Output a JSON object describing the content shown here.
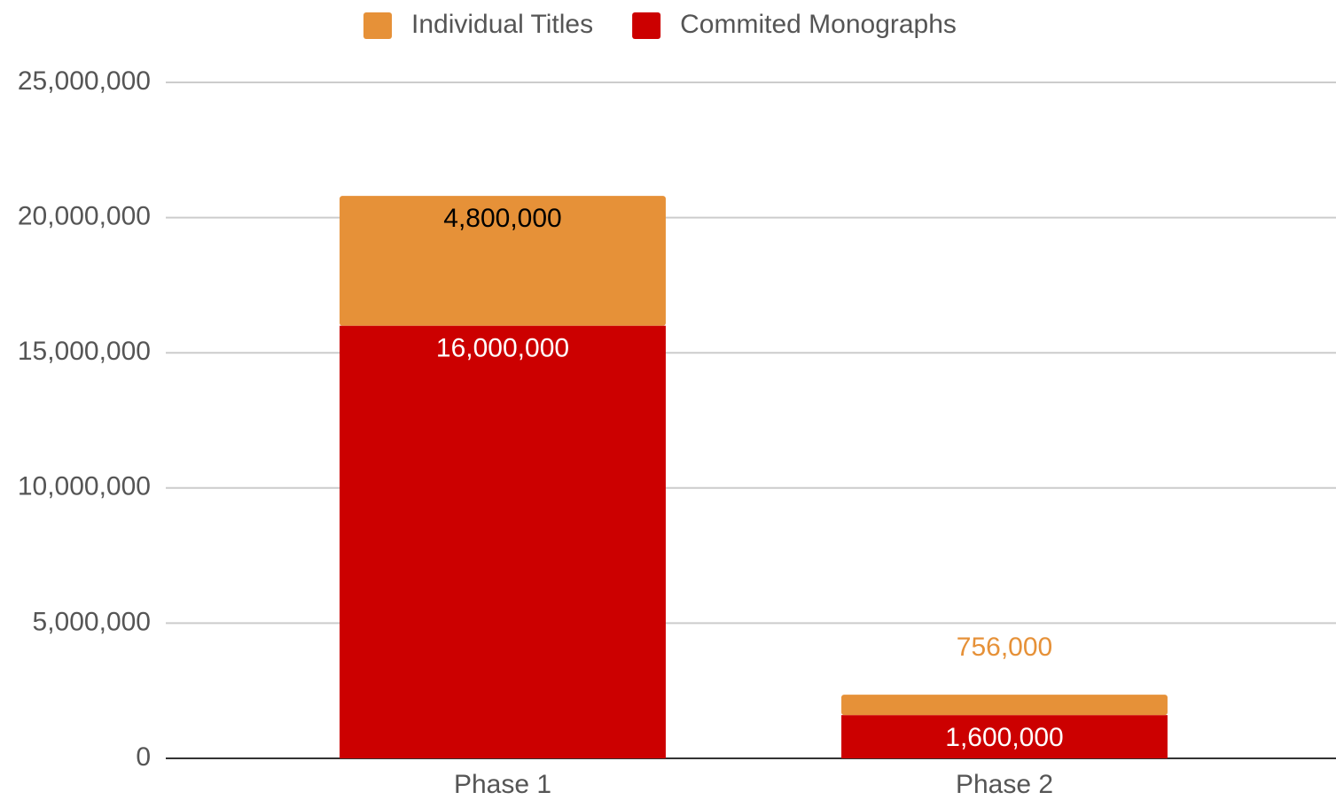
{
  "chart_data": {
    "type": "stacked_bar",
    "categories": [
      "Phase 1",
      "Phase 2"
    ],
    "series": [
      {
        "name": "Individual Titles",
        "color": "#e69138",
        "values": [
          4800000,
          756000
        ],
        "value_labels": [
          "4,800,000",
          "756,000"
        ]
      },
      {
        "name": "Commited Monographs",
        "color": "#cc0000",
        "values": [
          16000000,
          1600000
        ],
        "value_labels": [
          "16,000,000",
          "1,600,000"
        ]
      }
    ],
    "stack_order": "bottom-up-from-last",
    "ylim": [
      0,
      25000000
    ],
    "yticks": [
      0,
      {
        "value": 5000000,
        "label": "5,000,000"
      },
      {
        "value": 10000000,
        "label": "10,000,000"
      },
      {
        "value": 15000000,
        "label": "15,000,000"
      },
      {
        "value": 20000000,
        "label": "20,000,000"
      },
      {
        "value": 25000000,
        "label": "25,000,000"
      }
    ],
    "grid": true,
    "legend": "top"
  }
}
